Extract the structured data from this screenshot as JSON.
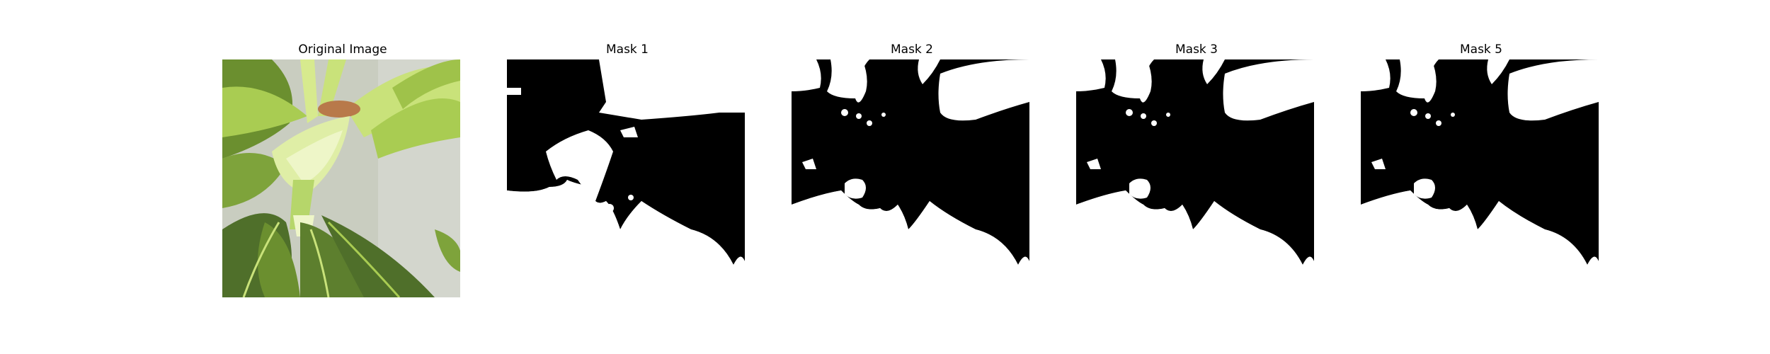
{
  "figure": {
    "panels": [
      {
        "title": "Original Image"
      },
      {
        "title": "Mask 1"
      },
      {
        "title": "Mask 2"
      },
      {
        "title": "Mask 3"
      },
      {
        "title": "Mask 5"
      }
    ]
  },
  "colors": {
    "mask_fill": "#000000",
    "mask_background": "#ffffff",
    "wall": "#c9cdc0",
    "leaf_dark": "#4f6f2a",
    "leaf_mid": "#7ea33b",
    "leaf_light": "#c9e27a",
    "stem": "#d7ea8e",
    "bud": "#b8794a"
  }
}
